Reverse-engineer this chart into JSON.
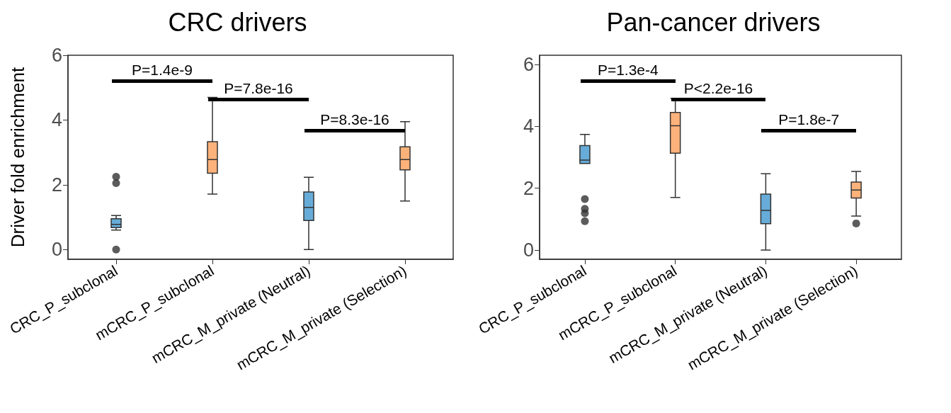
{
  "chart_data": [
    {
      "type": "box",
      "title": "CRC drivers",
      "ylabel": "Driver fold enrichment",
      "categories": [
        "CRC_P_subclonal",
        "mCRC_P_subclonal",
        "mCRC_M_private (Neutral)",
        "mCRC_M_private (Selection)"
      ],
      "colors": [
        "#67acd8",
        "#fdb27b",
        "#67acd8",
        "#fdb27b"
      ],
      "boxes": [
        {
          "low": 0.6,
          "q1": 0.68,
          "median": 0.78,
          "q3": 0.95,
          "high": 1.05,
          "outliers": [
            0,
            2.05,
            2.25
          ]
        },
        {
          "low": 1.71,
          "q1": 2.36,
          "median": 2.78,
          "q3": 3.33,
          "high": 4.7
        },
        {
          "low": 0,
          "q1": 0.9,
          "median": 1.3,
          "q3": 1.78,
          "high": 2.23
        },
        {
          "low": 1.5,
          "q1": 2.46,
          "median": 2.78,
          "q3": 3.17,
          "high": 3.95
        }
      ],
      "ylim": [
        -0.3,
        6
      ],
      "yticks": [
        0,
        2,
        4,
        6
      ],
      "grid": false,
      "annotations": [
        "P=1.4e-9",
        "P=7.8e-16",
        "P=8.3e-16"
      ]
    },
    {
      "type": "box",
      "title": "Pan-cancer drivers",
      "categories": [
        "CRC_P_subclonal",
        "mCRC_P_subclonal",
        "mCRC_M_private (Neutral)",
        "mCRC_M_private (Selection)"
      ],
      "colors": [
        "#67acd8",
        "#fdb27b",
        "#67acd8",
        "#fdb27b"
      ],
      "boxes": [
        {
          "low": 2.8,
          "q1": 2.8,
          "median": 2.91,
          "q3": 3.38,
          "high": 3.74,
          "outliers": [
            0.93,
            1.19,
            1.33,
            1.65
          ]
        },
        {
          "low": 1.7,
          "q1": 3.13,
          "median": 4.02,
          "q3": 4.45,
          "high": 4.9
        },
        {
          "low": 0,
          "q1": 0.85,
          "median": 1.28,
          "q3": 1.81,
          "high": 2.47
        },
        {
          "low": 1.1,
          "q1": 1.68,
          "median": 1.94,
          "q3": 2.2,
          "high": 2.54,
          "outliers": [
            0.86
          ]
        }
      ],
      "ylim": [
        -0.3,
        6.3
      ],
      "yticks": [
        0,
        2,
        4,
        6
      ],
      "grid": false,
      "annotations": [
        "P=1.3e-4",
        "P<2.2e-16",
        "P=1.8e-7"
      ]
    }
  ]
}
